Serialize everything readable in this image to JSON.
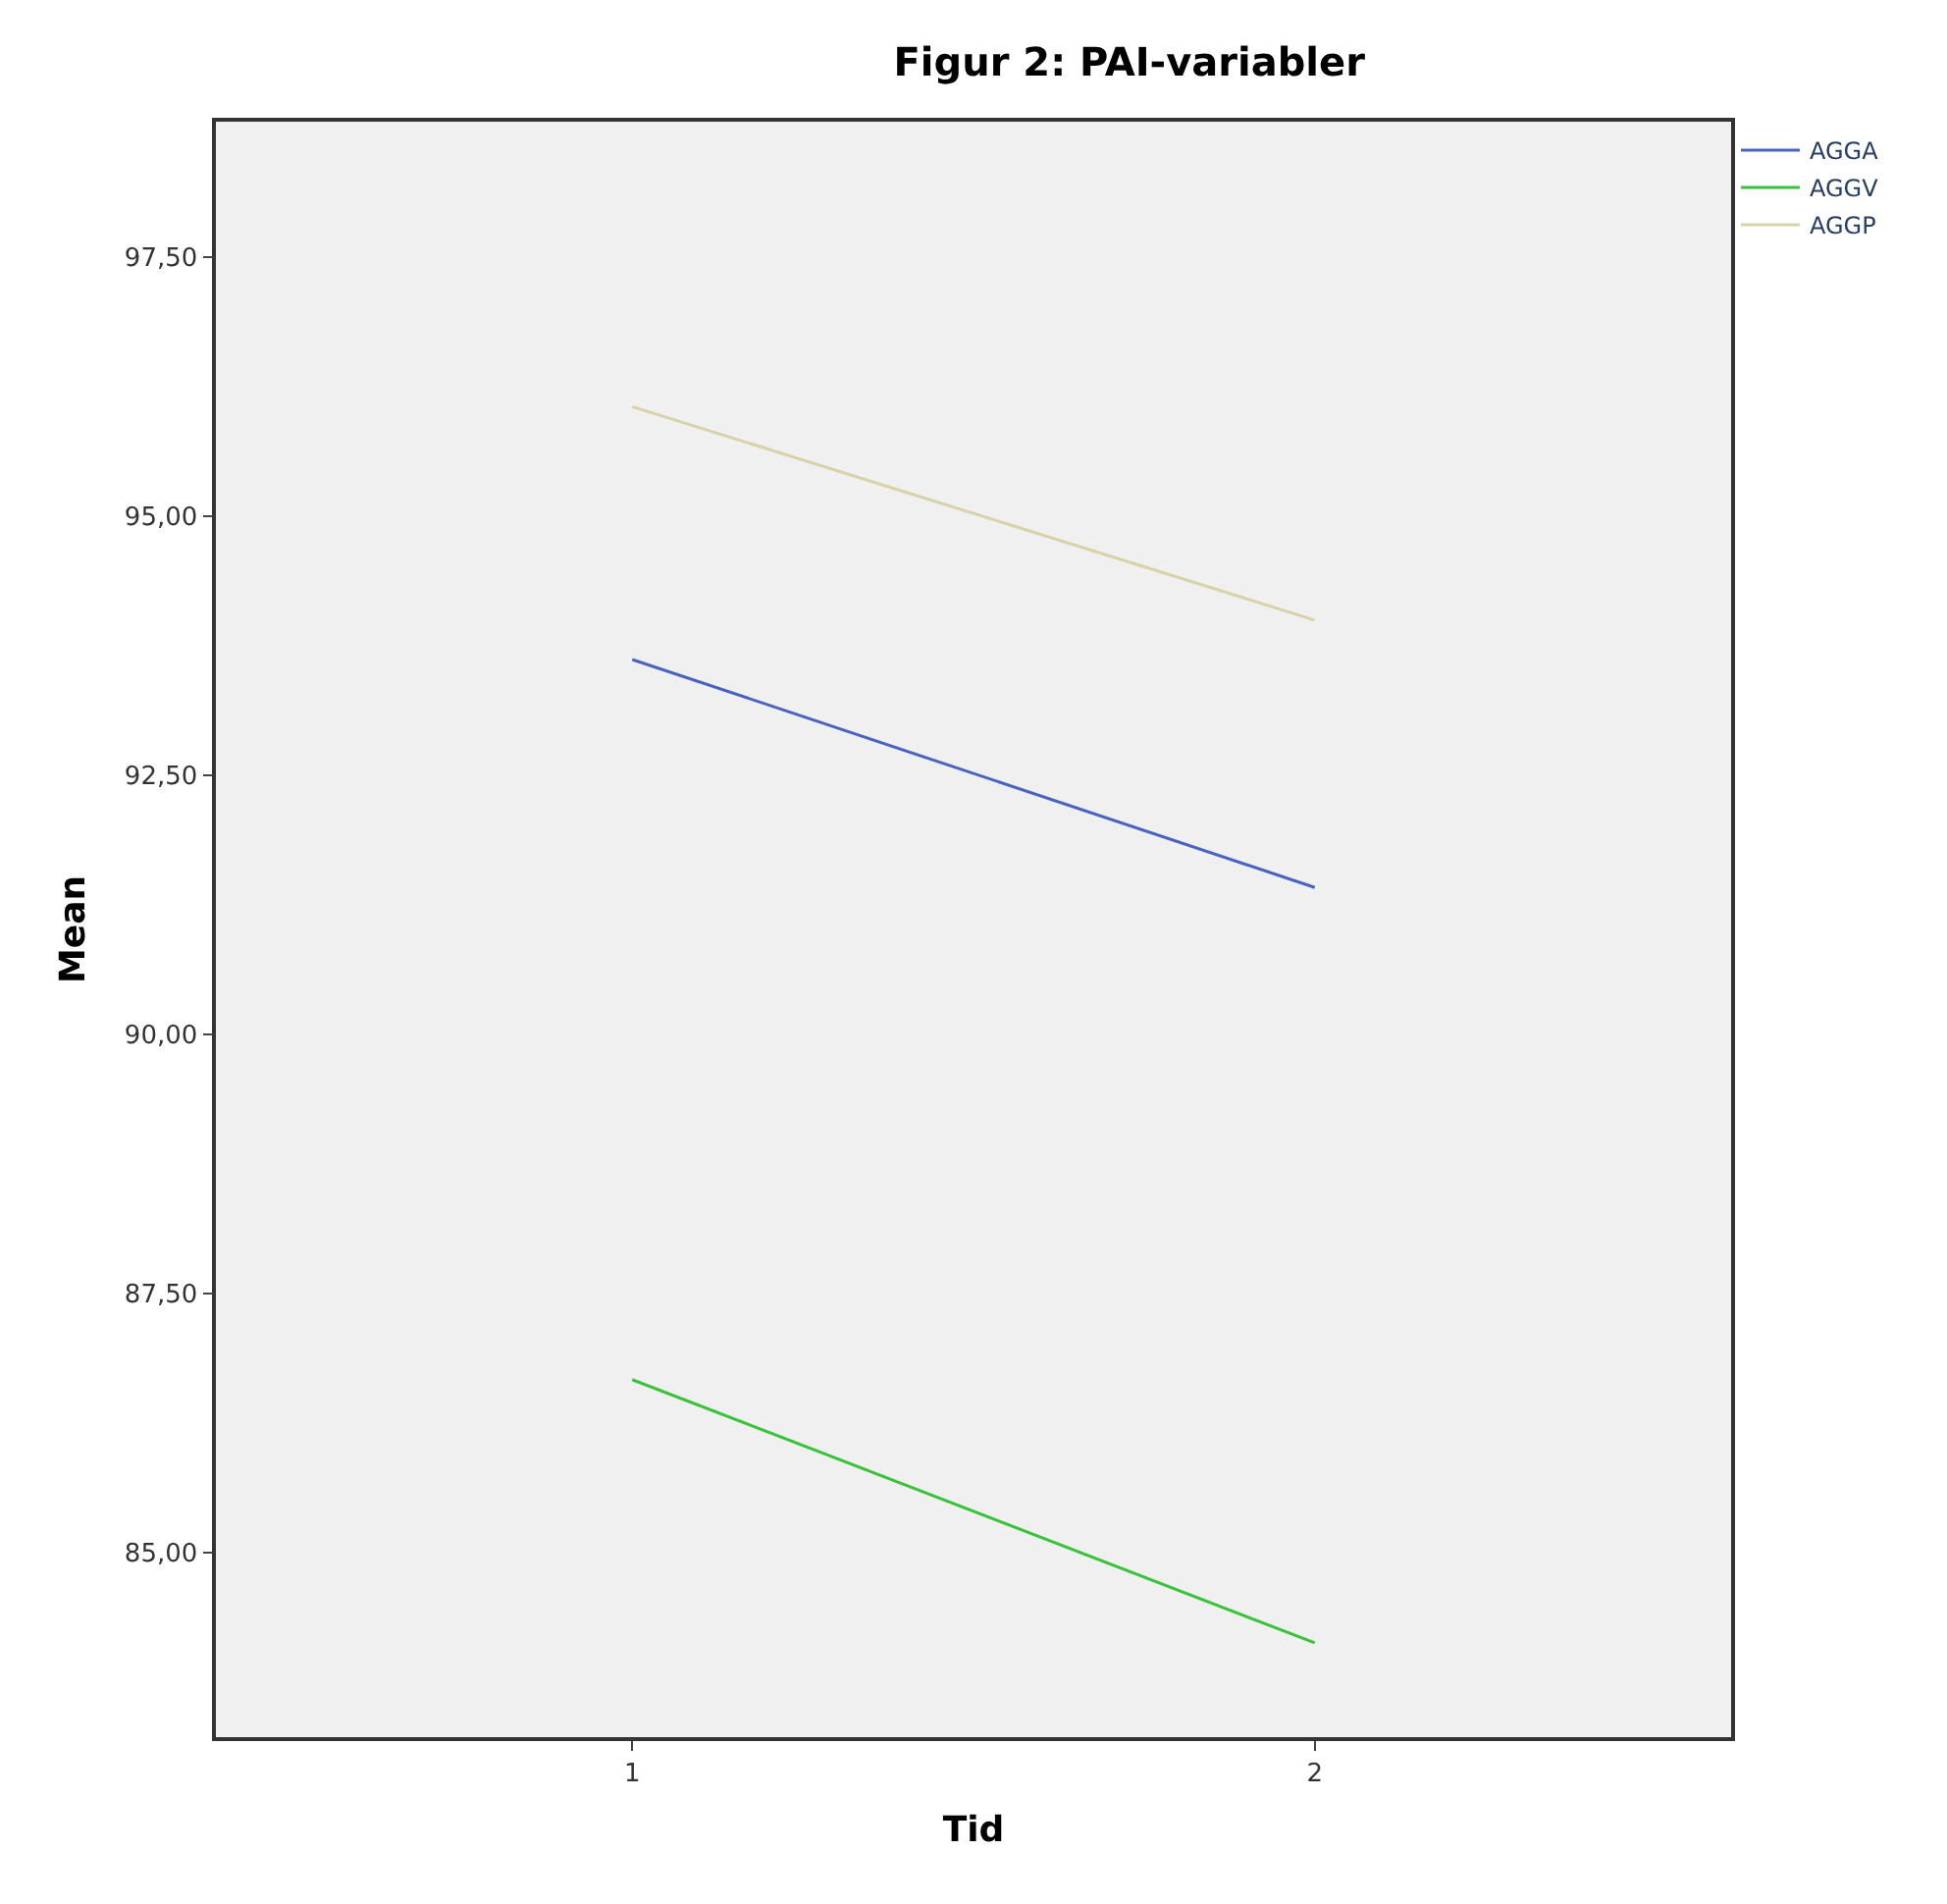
{
  "chart_data": {
    "type": "line",
    "title": "Figur 2: PAI-variabler",
    "xlabel": "Tid",
    "ylabel": "Mean",
    "x": [
      1,
      2
    ],
    "series": [
      {
        "name": "AGGA",
        "color": "#4a63c0",
        "values": [
          93.62,
          91.42
        ]
      },
      {
        "name": "AGGV",
        "color": "#3cc13c",
        "values": [
          86.67,
          84.13
        ]
      },
      {
        "name": "AGGP",
        "color": "#d8d2a8",
        "values": [
          96.06,
          94.0
        ]
      }
    ],
    "xlim": [
      0.39,
      2.61
    ],
    "xticks": [
      1,
      2
    ],
    "ylim": [
      83.22,
      98.81
    ],
    "yticks": [
      {
        "value": 85,
        "label": "85,00"
      },
      {
        "value": 87.5,
        "label": "87,50"
      },
      {
        "value": 90,
        "label": "90,00"
      },
      {
        "value": 92.5,
        "label": "92,50"
      },
      {
        "value": 95,
        "label": "95,00"
      },
      {
        "value": 97.5,
        "label": "97,50"
      }
    ],
    "grid": false,
    "legend": "top right",
    "marker": "none",
    "line_style": "solid"
  }
}
